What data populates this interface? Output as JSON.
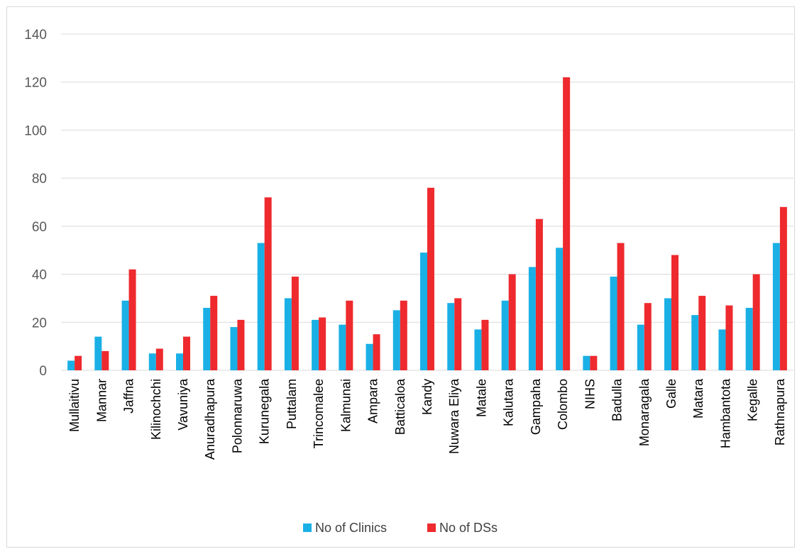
{
  "chart_data": {
    "type": "bar",
    "title": "",
    "xlabel": "",
    "ylabel": "",
    "ylim": [
      0,
      140
    ],
    "yticks": [
      0,
      20,
      40,
      60,
      80,
      100,
      120,
      140
    ],
    "grid": true,
    "legend_position": "bottom",
    "categories": [
      "Mullaitivu",
      "Mannar",
      "Jaffna",
      "Kilinochchi",
      "Vavuniya",
      "Anuradhapura",
      "Polonnaruwa",
      "Kurunegala",
      "Puttalam",
      "Trincomalee",
      "Kalmunai",
      "Ampara",
      "Batticaloa",
      "Kandy",
      "Nuwara Eliya",
      "Matale",
      "Kalutara",
      "Gampaha",
      "Colombo",
      "NIHS",
      "Badulla",
      "Monaragala",
      "Galle",
      "Matara",
      "Hambantota",
      "Kegalle",
      "Rathnapura"
    ],
    "series": [
      {
        "name": "No of Clinics",
        "color": "#1ab0e6",
        "values": [
          4,
          14,
          29,
          7,
          7,
          26,
          18,
          53,
          30,
          21,
          19,
          11,
          25,
          49,
          28,
          17,
          29,
          43,
          51,
          6,
          39,
          19,
          30,
          23,
          17,
          26,
          53
        ]
      },
      {
        "name": "No of DSs",
        "color": "#ee2a2e",
        "values": [
          6,
          8,
          42,
          9,
          14,
          31,
          21,
          72,
          39,
          22,
          29,
          15,
          29,
          76,
          30,
          21,
          40,
          63,
          122,
          6,
          53,
          28,
          48,
          31,
          27,
          40,
          68
        ]
      }
    ]
  }
}
